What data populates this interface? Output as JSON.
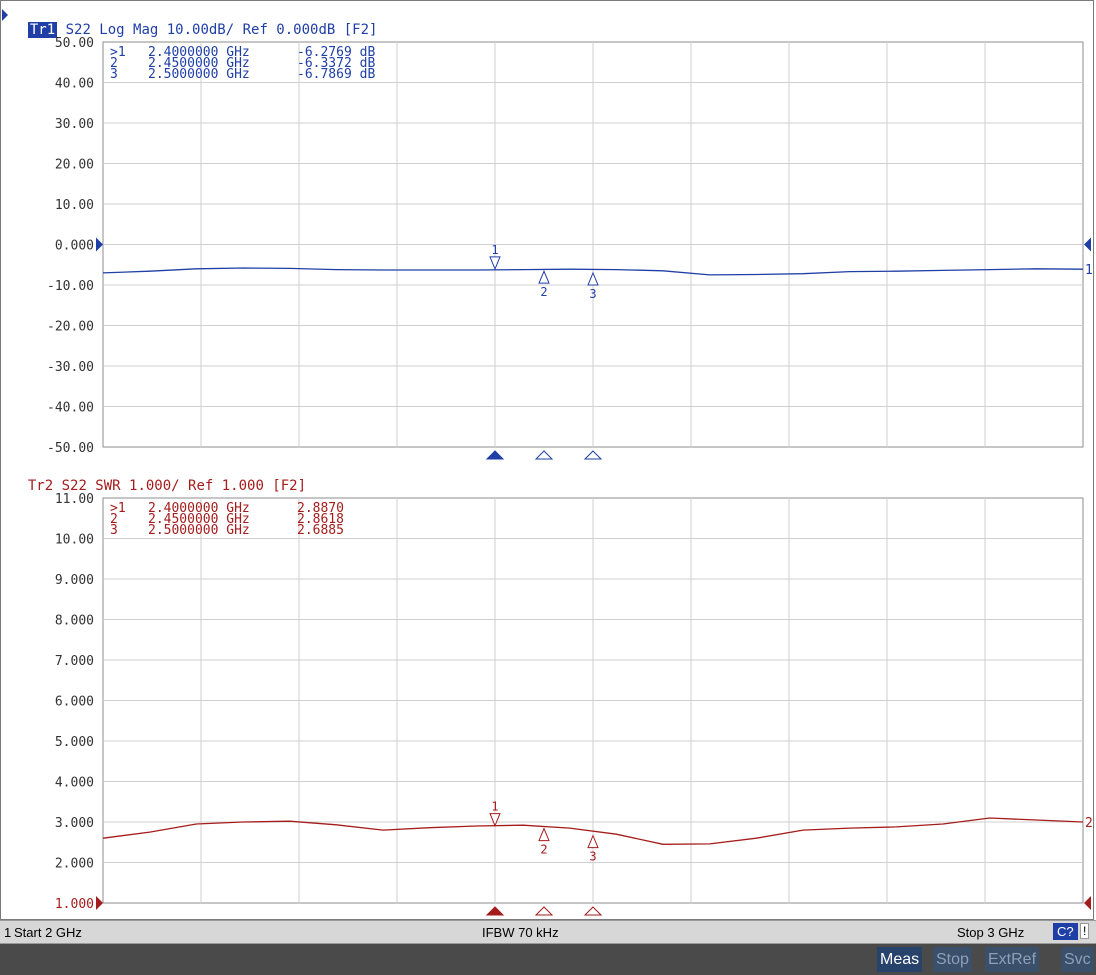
{
  "traces": [
    {
      "id": "tr1",
      "tag": "Tr1",
      "header_rest": " S22 Log Mag 10.00dB/ Ref 0.000dB [F2]",
      "color": "#1f3fa6",
      "trace_label": "1",
      "markers_table": [
        {
          "label": ">1",
          "freq": "2.4000000 GHz",
          "value": "-6.2769 dB"
        },
        {
          "label": " 2",
          "freq": "2.4500000 GHz",
          "value": "-6.3372 dB"
        },
        {
          "label": " 3",
          "freq": "2.5000000 GHz",
          "value": "-6.7869 dB"
        }
      ]
    },
    {
      "id": "tr2",
      "tag": "Tr2",
      "header_rest": " S22 SWR 1.000/ Ref 1.000 [F2]",
      "color": "#a51c1c",
      "trace_label": "2",
      "markers_table": [
        {
          "label": ">1",
          "freq": "2.4000000 GHz",
          "value": "2.8870"
        },
        {
          "label": " 2",
          "freq": "2.4500000 GHz",
          "value": "2.8618"
        },
        {
          "label": " 3",
          "freq": "2.5000000 GHz",
          "value": "2.6885"
        }
      ]
    }
  ],
  "status": {
    "channel": "1",
    "start": "Start 2 GHz",
    "ifbw": "IFBW 70 kHz",
    "stop": "Stop 3 GHz",
    "cal": "C?",
    "warning": "!"
  },
  "softkeys": [
    "Meas",
    "Stop",
    "ExtRef",
    "Svc"
  ],
  "chart_data": [
    {
      "type": "line",
      "series": [
        {
          "values": [
            -7.0,
            -6.6,
            -6.0,
            -5.8,
            -5.9,
            -6.2,
            -6.3,
            -6.3,
            -6.3,
            -6.2,
            -6.1,
            -6.2,
            -6.5,
            -7.5,
            -7.4,
            -7.2,
            -6.7,
            -6.6,
            -6.4,
            -6.2,
            -6.0,
            -6.1
          ]
        }
      ],
      "xlim": [
        2.0,
        3.0
      ],
      "ylim": [
        -50,
        50
      ],
      "y_ticks": [
        "50.00",
        "40.00",
        "30.00",
        "20.00",
        "10.00",
        "0.000",
        "-10.00",
        "-20.00",
        "-30.00",
        "-40.00",
        "-50.00"
      ],
      "ref_value": 0,
      "markers": [
        {
          "n": "1",
          "x": 2.4,
          "y": -6.2769,
          "above": true
        },
        {
          "n": "2",
          "x": 2.45,
          "y": -6.3372,
          "above": false
        },
        {
          "n": "3",
          "x": 2.5,
          "y": -6.7869,
          "above": false
        }
      ],
      "grid": true
    },
    {
      "type": "line",
      "series": [
        {
          "values": [
            2.6,
            2.75,
            2.95,
            3.0,
            3.02,
            2.93,
            2.8,
            2.86,
            2.9,
            2.92,
            2.85,
            2.7,
            2.45,
            2.46,
            2.6,
            2.8,
            2.85,
            2.88,
            2.95,
            3.1,
            3.05,
            3.0
          ]
        }
      ],
      "xlim": [
        2.0,
        3.0
      ],
      "ylim": [
        1,
        11
      ],
      "y_ticks": [
        "11.00",
        "10.00",
        "9.000",
        "8.000",
        "7.000",
        "6.000",
        "5.000",
        "4.000",
        "3.000",
        "2.000",
        "1.000"
      ],
      "ref_value": 1,
      "markers": [
        {
          "n": "1",
          "x": 2.4,
          "y": 2.887,
          "above": true
        },
        {
          "n": "2",
          "x": 2.45,
          "y": 2.8618,
          "above": false
        },
        {
          "n": "3",
          "x": 2.5,
          "y": 2.6885,
          "above": false
        }
      ],
      "grid": true
    }
  ]
}
